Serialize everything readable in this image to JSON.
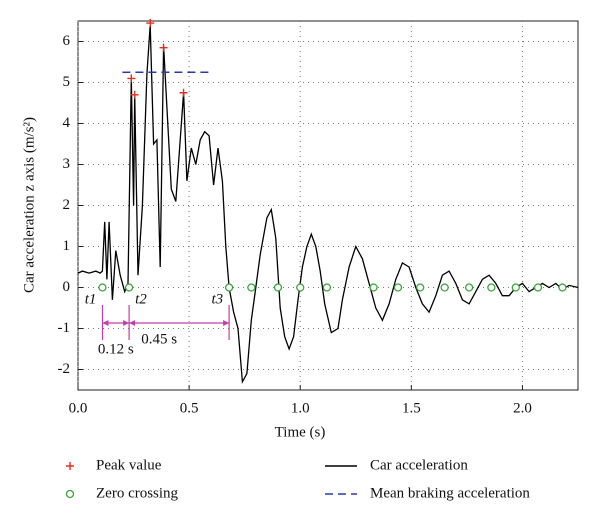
{
  "chart_data": {
    "type": "line",
    "xlabel": "Time (s)",
    "ylabel": "Car acceleration z axis (m/s²)",
    "xlim": [
      0,
      2.25
    ],
    "ylim": [
      -2.5,
      6.5
    ],
    "xticks": [
      {
        "value": 0,
        "label": "0.0"
      },
      0.5,
      {
        "value": 1,
        "label": "1.0"
      },
      1.5,
      {
        "value": 2,
        "label": "2.0"
      }
    ],
    "yticks": [
      -2,
      -1,
      0,
      1,
      2,
      3,
      4,
      5,
      6
    ],
    "grid": true,
    "legend": "bottom",
    "annotations": [
      "t1",
      "t2",
      "t3",
      "0.12 s",
      "0.45 s"
    ],
    "series": [
      {
        "name": "Car acceleration",
        "color": "#000000",
        "x": [
          0,
          0.02,
          0.05,
          0.08,
          0.1,
          0.11,
          0.12,
          0.13,
          0.14,
          0.155,
          0.17,
          0.19,
          0.21,
          0.225,
          0.24,
          0.25,
          0.255,
          0.27,
          0.29,
          0.31,
          0.325,
          0.34,
          0.355,
          0.37,
          0.385,
          0.4,
          0.42,
          0.44,
          0.46,
          0.475,
          0.49,
          0.51,
          0.53,
          0.55,
          0.57,
          0.59,
          0.61,
          0.63,
          0.65,
          0.665,
          0.68,
          0.7,
          0.72,
          0.74,
          0.76,
          0.78,
          0.8,
          0.82,
          0.85,
          0.87,
          0.89,
          0.91,
          0.93,
          0.95,
          0.97,
          0.99,
          1.01,
          1.03,
          1.05,
          1.07,
          1.09,
          1.11,
          1.14,
          1.17,
          1.19,
          1.22,
          1.25,
          1.28,
          1.31,
          1.34,
          1.37,
          1.4,
          1.43,
          1.46,
          1.49,
          1.52,
          1.55,
          1.58,
          1.61,
          1.64,
          1.67,
          1.7,
          1.73,
          1.76,
          1.79,
          1.82,
          1.85,
          1.88,
          1.91,
          1.94,
          1.97,
          2.0,
          2.03,
          2.06,
          2.09,
          2.12,
          2.15,
          2.18,
          2.21,
          2.25
        ],
        "values": [
          0.35,
          0.4,
          0.35,
          0.4,
          0.35,
          0.4,
          1.6,
          0.2,
          1.6,
          -0.3,
          0.9,
          0.3,
          -0.1,
          0.1,
          5.1,
          2.0,
          4.7,
          0.3,
          2.0,
          5.2,
          6.4,
          3.5,
          3.6,
          0.5,
          5.9,
          4.4,
          2.4,
          2.1,
          3.6,
          4.75,
          2.6,
          3.4,
          3.0,
          3.6,
          3.8,
          3.7,
          2.5,
          3.4,
          2.6,
          1.0,
          0.0,
          -0.6,
          -1.0,
          -2.3,
          -2.1,
          -0.8,
          0.0,
          0.8,
          1.7,
          1.9,
          1.2,
          -0.5,
          -1.2,
          -1.5,
          -1.2,
          -0.3,
          0.5,
          1.0,
          1.3,
          1.0,
          0.4,
          -0.4,
          -1.1,
          -1.0,
          -0.3,
          0.5,
          1.0,
          0.7,
          0.1,
          -0.5,
          -0.8,
          -0.4,
          0.2,
          0.6,
          0.5,
          0.0,
          -0.4,
          -0.6,
          -0.2,
          0.3,
          0.4,
          0.1,
          -0.3,
          -0.4,
          -0.1,
          0.2,
          0.3,
          0.1,
          -0.2,
          -0.2,
          0.0,
          0.1,
          -0.1,
          0.0,
          0.1,
          0.0,
          0.1,
          -0.05,
          0.05,
          0.0
        ]
      },
      {
        "name": "Peak value",
        "color": "#e03020",
        "marker": "+",
        "x": [
          0.24,
          0.255,
          0.325,
          0.385,
          0.475
        ],
        "values": [
          5.1,
          4.7,
          6.45,
          5.85,
          4.75
        ]
      },
      {
        "name": "Zero crossing",
        "color": "#3aa43a",
        "marker": "o",
        "x": [
          0.11,
          0.23,
          0.68,
          0.78,
          0.9,
          1.0,
          1.12,
          1.33,
          1.44,
          1.54,
          1.65,
          1.76,
          1.86,
          1.97,
          2.07,
          2.18
        ],
        "values": [
          0,
          0,
          0,
          0,
          0,
          0,
          0,
          0,
          0,
          0,
          0,
          0,
          0,
          0,
          0,
          0
        ]
      },
      {
        "name": "Mean braking acceleration",
        "color": "#2a3aa8",
        "dash": true,
        "x": [
          0.2,
          0.6
        ],
        "values": [
          5.25,
          5.25
        ]
      }
    ]
  }
}
